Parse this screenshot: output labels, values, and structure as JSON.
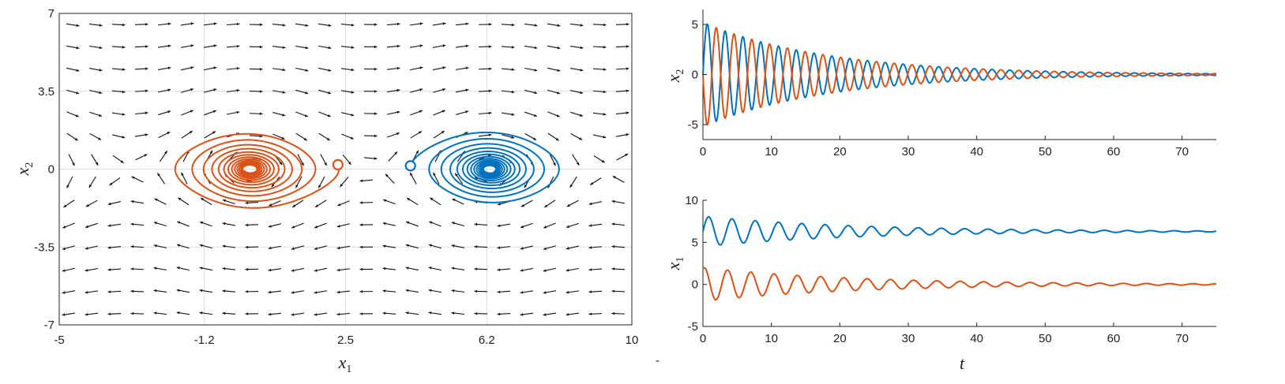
{
  "colors": {
    "series_a": "#D95319",
    "series_b": "#0072BD"
  },
  "stray_mark": "-",
  "chart_data": [
    {
      "id": "phase",
      "type": "line",
      "title": "",
      "xlabel": "x",
      "xlabel_sub": "1",
      "ylabel": "x",
      "ylabel_sub": "2",
      "xlim": [
        -5,
        10
      ],
      "ylim": [
        -7,
        7
      ],
      "xticks": [
        -5,
        -1.2,
        2.5,
        6.2,
        10
      ],
      "xtick_labels": [
        "-5",
        "-1.2",
        "2.5",
        "6.2",
        "10"
      ],
      "yticks": [
        7,
        3.5,
        0,
        -3.5,
        -7
      ],
      "ytick_labels": [
        "7",
        "3.5",
        "0",
        "-3.5",
        "-7"
      ],
      "grid": true,
      "vector_field": true,
      "series": [
        {
          "color": "series_a",
          "start": [
            2.3,
            0.2
          ],
          "center": [
            0,
            0
          ],
          "start_marker": "circle"
        },
        {
          "color": "series_b",
          "start": [
            4.2,
            0.15
          ],
          "center": [
            6.28,
            0
          ],
          "start_marker": "circle"
        }
      ]
    },
    {
      "id": "x2_time",
      "type": "line",
      "title": "",
      "xlabel": "",
      "ylabel": "x",
      "ylabel_sub": "2",
      "xlim": [
        0,
        75
      ],
      "ylim": [
        -6.5,
        6.5
      ],
      "xticks": [
        0,
        10,
        20,
        30,
        40,
        50,
        60,
        70
      ],
      "xtick_labels": [
        "0",
        "10",
        "20",
        "30",
        "40",
        "50",
        "60",
        "70"
      ],
      "yticks": [
        5,
        0,
        -5
      ],
      "ytick_labels": [
        "5",
        "0",
        "-5"
      ],
      "grid": false,
      "series": [
        {
          "color": "series_b",
          "amplitude": 5.2,
          "decay": 0.055,
          "period": 2.6,
          "phase": 0,
          "offset": 0
        },
        {
          "color": "series_a",
          "amplitude": 5.2,
          "decay": 0.055,
          "period": 2.6,
          "phase": 3.14159,
          "offset": 0
        }
      ]
    },
    {
      "id": "x1_time",
      "type": "line",
      "title": "",
      "xlabel": "t",
      "ylabel": "x",
      "ylabel_sub": "1",
      "xlim": [
        0,
        75
      ],
      "ylim": [
        -5,
        10
      ],
      "xticks": [
        0,
        10,
        20,
        30,
        40,
        50,
        60,
        70
      ],
      "xtick_labels": [
        "0",
        "10",
        "20",
        "30",
        "40",
        "50",
        "60",
        "70"
      ],
      "yticks": [
        10,
        5,
        0,
        -5
      ],
      "ytick_labels": [
        "10",
        "5",
        "0",
        "-5"
      ],
      "grid": false,
      "series": [
        {
          "color": "series_b",
          "amplitude": 1.8,
          "decay": 0.045,
          "period": 3.4,
          "phase": 0,
          "offset": 6.3
        },
        {
          "color": "series_a",
          "amplitude": 2.0,
          "decay": 0.045,
          "period": 3.4,
          "phase": 1.2,
          "offset": 0
        }
      ]
    }
  ]
}
